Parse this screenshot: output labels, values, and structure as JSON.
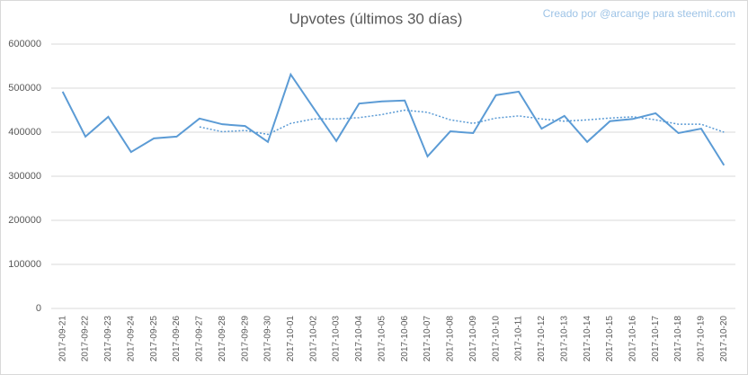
{
  "chart_data": {
    "type": "line",
    "title": "Upvotes (últimos 30 días)",
    "credit": "Creado por @arcange para steemit.com",
    "categories": [
      "2017-09-21",
      "2017-09-22",
      "2017-09-23",
      "2017-09-24",
      "2017-09-25",
      "2017-09-26",
      "2017-09-27",
      "2017-09-28",
      "2017-09-29",
      "2017-09-30",
      "2017-10-01",
      "2017-10-02",
      "2017-10-03",
      "2017-10-04",
      "2017-10-05",
      "2017-10-06",
      "2017-10-07",
      "2017-10-08",
      "2017-10-09",
      "2017-10-10",
      "2017-10-11",
      "2017-10-12",
      "2017-10-13",
      "2017-10-14",
      "2017-10-15",
      "2017-10-16",
      "2017-10-17",
      "2017-10-18",
      "2017-10-19",
      "2017-10-20"
    ],
    "series": [
      {
        "color": "#5b9bd5",
        "style": "solid",
        "values": [
          492000,
          390000,
          435000,
          355000,
          386000,
          390000,
          431000,
          418000,
          414000,
          378000,
          531000,
          455000,
          380000,
          465000,
          470000,
          472000,
          345000,
          402000,
          398000,
          484000,
          492000,
          408000,
          437000,
          378000,
          425000,
          430000,
          443000,
          398000,
          408000,
          325000
        ]
      },
      {
        "color": "#5b9bd5",
        "style": "dotted",
        "values": [
          null,
          null,
          null,
          null,
          null,
          null,
          412000,
          401000,
          404000,
          395000,
          420000,
          430000,
          430000,
          433000,
          440000,
          450000,
          445000,
          428000,
          420000,
          432000,
          437000,
          430000,
          425000,
          428000,
          432000,
          435000,
          428000,
          418000,
          418000,
          400000
        ]
      }
    ],
    "ylim": [
      0,
      600000
    ],
    "yticks": [
      0,
      100000,
      200000,
      300000,
      400000,
      500000,
      600000
    ],
    "grid": true
  }
}
